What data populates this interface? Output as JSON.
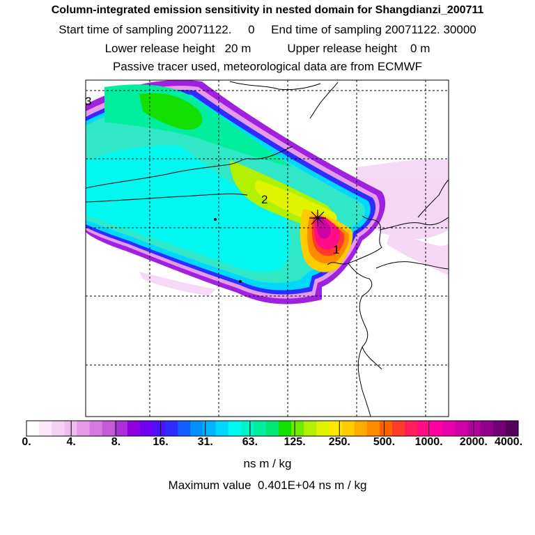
{
  "header": {
    "title": "Column-integrated emission sensitivity in nested domain for Shangdianzi_200711",
    "line2": "Start time of sampling 20071122.     0     End time of sampling 20071122. 30000",
    "line3": "Lower release height   20 m           Upper release height    0 m",
    "line4": "Passive tracer used, meteorological data are from ECMWF"
  },
  "map": {
    "labels": [
      {
        "id": "label-1",
        "text": "1"
      },
      {
        "id": "label-2",
        "text": "2"
      },
      {
        "id": "label-3",
        "text": "3"
      }
    ],
    "receptor_marker": "asterisk-icon"
  },
  "colorbar": {
    "ticks": [
      "0.",
      "4.",
      "8.",
      "16.",
      "31.",
      "63.",
      "125.",
      "250.",
      "500.",
      "1000.",
      "2000.",
      "4000."
    ],
    "colors": [
      "#ffffff",
      "#fbe8fb",
      "#f5d2f5",
      "#eebcf0",
      "#e59be8",
      "#d57ae0",
      "#c35ad8",
      "#ad2ed8",
      "#8f00e0",
      "#7000f0",
      "#5010f8",
      "#2f2cff",
      "#1060ff",
      "#0090ff",
      "#00b5ff",
      "#00d8ff",
      "#00f8f0",
      "#00f4c8",
      "#00ee9e",
      "#00e873",
      "#14e000",
      "#70ea00",
      "#b0f000",
      "#e0f400",
      "#ffe800",
      "#ffcc00",
      "#ffab00",
      "#ff8a00",
      "#ff6200",
      "#ff3a28",
      "#ff1e5a",
      "#ff0c86",
      "#ff00a6",
      "#e800ac",
      "#d000a6",
      "#b2009c",
      "#93008b",
      "#740075",
      "#55005a"
    ],
    "unit": "ns m / kg"
  },
  "max_value": "Maximum value  0.401E+04 ns m / kg"
}
